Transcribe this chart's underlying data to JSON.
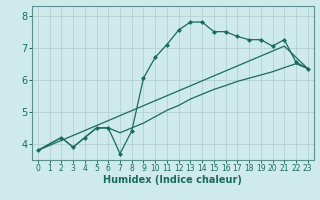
{
  "xlabel": "Humidex (Indice chaleur)",
  "bg_color": "#ceeaea",
  "grid_color": "#b8d4d4",
  "line_color": "#1a6b5a",
  "spine_color": "#5a9090",
  "xlim": [
    -0.5,
    23.5
  ],
  "ylim": [
    3.5,
    8.3
  ],
  "xticks": [
    0,
    1,
    2,
    3,
    4,
    5,
    6,
    7,
    8,
    9,
    10,
    11,
    12,
    13,
    14,
    15,
    16,
    17,
    18,
    19,
    20,
    21,
    22,
    23
  ],
  "yticks": [
    4,
    5,
    6,
    7,
    8
  ],
  "line1_x": [
    0,
    2,
    3,
    4,
    5,
    6,
    7,
    8,
    9,
    10,
    11,
    12,
    13,
    14,
    15,
    16,
    17,
    18,
    19,
    20,
    21,
    22,
    23
  ],
  "line1_y": [
    3.8,
    4.2,
    3.9,
    4.2,
    4.5,
    4.5,
    3.7,
    4.4,
    6.05,
    6.7,
    7.1,
    7.55,
    7.8,
    7.8,
    7.5,
    7.5,
    7.35,
    7.25,
    7.25,
    7.05,
    7.25,
    6.55,
    6.35
  ],
  "line2_x": [
    0,
    2,
    3,
    4,
    5,
    6,
    7,
    8,
    9,
    10,
    11,
    12,
    13,
    14,
    15,
    16,
    17,
    18,
    19,
    20,
    21,
    22,
    23
  ],
  "line2_y": [
    3.8,
    4.2,
    3.9,
    4.2,
    4.5,
    4.5,
    4.35,
    4.5,
    4.65,
    4.85,
    5.05,
    5.2,
    5.4,
    5.55,
    5.7,
    5.82,
    5.95,
    6.05,
    6.15,
    6.25,
    6.38,
    6.5,
    6.35
  ],
  "line3_x": [
    0,
    21,
    23
  ],
  "line3_y": [
    3.8,
    7.05,
    6.35
  ]
}
